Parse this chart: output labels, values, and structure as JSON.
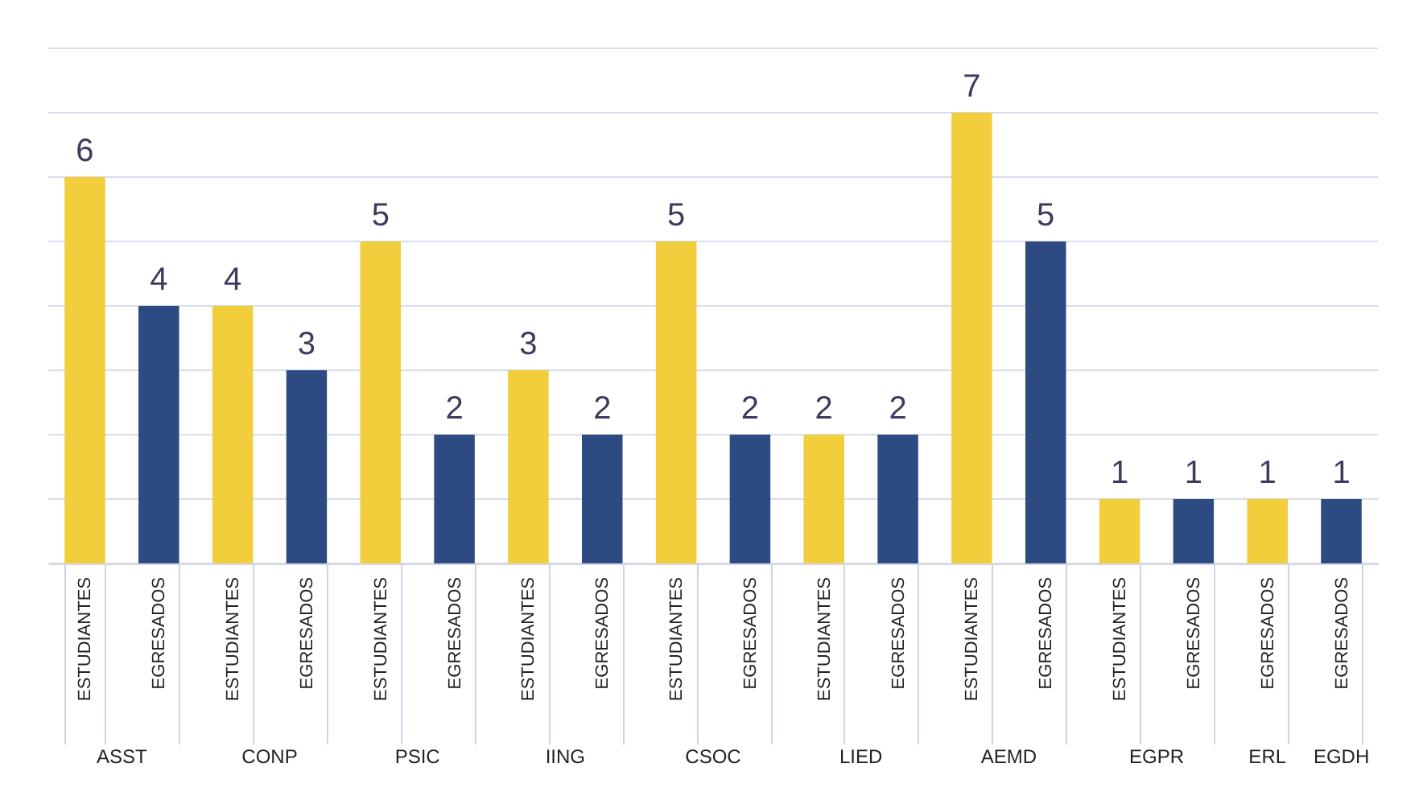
{
  "chart_data": {
    "type": "bar",
    "categories": [
      "ESTUDIANTES",
      "EGRESADOS",
      "ESTUDIANTES",
      "EGRESADOS",
      "ESTUDIANTES",
      "EGRESADOS",
      "ESTUDIANTES",
      "EGRESADOS",
      "ESTUDIANTES",
      "EGRESADOS",
      "ESTUDIANTES",
      "EGRESADOS",
      "ESTUDIANTES",
      "EGRESADOS",
      "ESTUDIANTES",
      "EGRESADOS",
      "EGRESADOS",
      "EGRESADOS"
    ],
    "values": [
      6,
      4,
      4,
      3,
      5,
      2,
      3,
      2,
      5,
      2,
      2,
      2,
      7,
      5,
      1,
      1,
      1,
      1
    ],
    "colors": [
      "#f2cd3c",
      "#2d4b82",
      "#f2cd3c",
      "#2d4b82",
      "#f2cd3c",
      "#2d4b82",
      "#f2cd3c",
      "#2d4b82",
      "#f2cd3c",
      "#2d4b82",
      "#f2cd3c",
      "#2d4b82",
      "#f2cd3c",
      "#2d4b82",
      "#f2cd3c",
      "#2d4b82",
      "#f2cd3c",
      "#2d4b82"
    ],
    "annotations": [
      "ASST",
      "CONP",
      "PSIC",
      "IING",
      "CSOC",
      "LIED",
      "AEMD",
      "EGPR",
      "ERL",
      "EGDH"
    ],
    "data_labels": true,
    "ylim": [
      0,
      8
    ],
    "yticks": [
      {
        "value": 0,
        "label": null
      },
      {
        "value": 1,
        "label": null
      },
      {
        "value": 2,
        "label": null
      },
      {
        "value": 3,
        "label": null
      },
      {
        "value": 4,
        "label": null
      },
      {
        "value": 5,
        "label": null
      },
      {
        "value": 6,
        "label": null
      },
      {
        "value": 7,
        "label": null
      },
      {
        "value": 8,
        "label": null
      }
    ],
    "tick_labels": "x",
    "grid": "y"
  }
}
